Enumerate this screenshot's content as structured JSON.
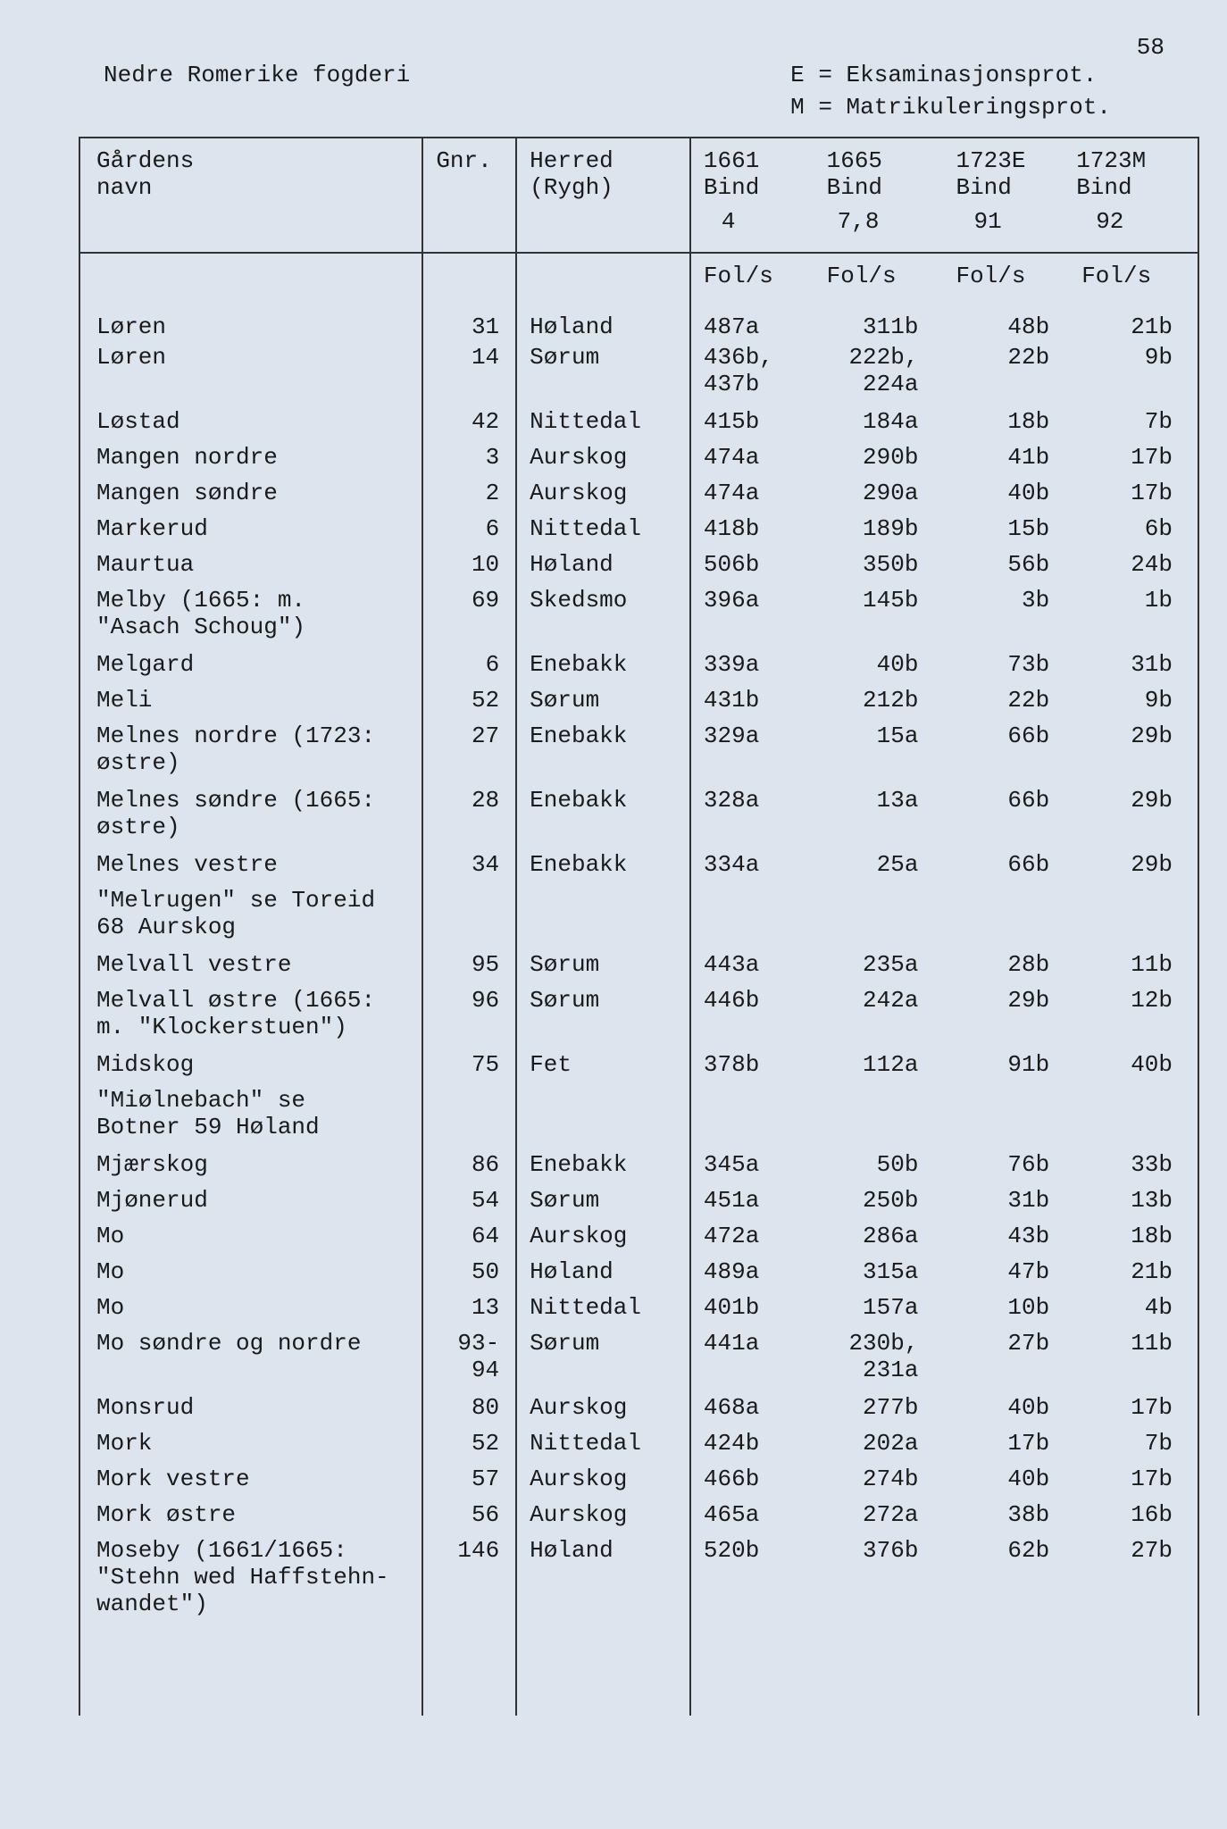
{
  "page_number": "58",
  "header": {
    "left": "Nedre Romerike fogderi",
    "right_line1": "E = Eksaminasjonsprot.",
    "right_line2": "M = Matrikuleringsprot."
  },
  "columns": {
    "name_label1": "Gårdens",
    "name_label2": "navn",
    "gnr_label": "Gnr.",
    "herred_label1": "Herred",
    "herred_label2": "(Rygh)",
    "y1661_l1": "1661",
    "y1661_l2": "Bind",
    "y1661_l3": "4",
    "y1665_l1": "1665",
    "y1665_l2": "Bind",
    "y1665_l3": "7,8",
    "y1723e_l1": "1723E",
    "y1723e_l2": "Bind",
    "y1723e_l3": "91",
    "y1723m_l1": "1723M",
    "y1723m_l2": "Bind",
    "y1723m_l3": "92",
    "fols": "Fol/s"
  },
  "rows": [
    {
      "name": "Løren",
      "gnr": "31",
      "herred": "Høland",
      "c1": "487a",
      "c2": "311b",
      "c3": "48b",
      "c4": "21b"
    },
    {
      "name": "Løren",
      "gnr": "14",
      "herred": "Sørum",
      "c1": "436b,\n437b",
      "c2": "222b,\n224a",
      "c3": "22b",
      "c4": "9b",
      "multi": true
    },
    {
      "name": "Løstad",
      "gnr": "42",
      "herred": "Nittedal",
      "c1": "415b",
      "c2": "184a",
      "c3": "18b",
      "c4": "7b"
    },
    {
      "name": "Mangen nordre",
      "gnr": "3",
      "herred": "Aurskog",
      "c1": "474a",
      "c2": "290b",
      "c3": "41b",
      "c4": "17b"
    },
    {
      "name": "Mangen søndre",
      "gnr": "2",
      "herred": "Aurskog",
      "c1": "474a",
      "c2": "290a",
      "c3": "40b",
      "c4": "17b"
    },
    {
      "name": "Markerud",
      "gnr": "6",
      "herred": "Nittedal",
      "c1": "418b",
      "c2": "189b",
      "c3": "15b",
      "c4": "6b"
    },
    {
      "name": "Maurtua",
      "gnr": "10",
      "herred": "Høland",
      "c1": "506b",
      "c2": "350b",
      "c3": "56b",
      "c4": "24b"
    },
    {
      "name": "Melby (1665: m.\n\"Asach Schoug\")",
      "gnr": "69",
      "herred": "Skedsmo",
      "c1": "396a",
      "c2": "145b",
      "c3": "3b",
      "c4": "1b",
      "multi": true
    },
    {
      "name": "Melgard",
      "gnr": "6",
      "herred": "Enebakk",
      "c1": "339a",
      "c2": "40b",
      "c3": "73b",
      "c4": "31b"
    },
    {
      "name": "Meli",
      "gnr": "52",
      "herred": "Sørum",
      "c1": "431b",
      "c2": "212b",
      "c3": "22b",
      "c4": "9b"
    },
    {
      "name": "Melnes nordre (1723:\nøstre)",
      "gnr": "27",
      "herred": "Enebakk",
      "c1": "329a",
      "c2": "15a",
      "c3": "66b",
      "c4": "29b",
      "multi": true
    },
    {
      "name": "Melnes søndre (1665:\nøstre)",
      "gnr": "28",
      "herred": "Enebakk",
      "c1": "328a",
      "c2": "13a",
      "c3": "66b",
      "c4": "29b",
      "multi": true
    },
    {
      "name": "Melnes vestre",
      "gnr": "34",
      "herred": "Enebakk",
      "c1": "334a",
      "c2": "25a",
      "c3": "66b",
      "c4": "29b"
    },
    {
      "name": "\"Melrugen\" se Toreid\n68 Aurskog",
      "gnr": "",
      "herred": "",
      "c1": "",
      "c2": "",
      "c3": "",
      "c4": "",
      "multi": true
    },
    {
      "name": "Melvall vestre",
      "gnr": "95",
      "herred": "Sørum",
      "c1": "443a",
      "c2": "235a",
      "c3": "28b",
      "c4": "11b"
    },
    {
      "name": "Melvall østre (1665:\nm. \"Klockerstuen\")",
      "gnr": "96",
      "herred": "Sørum",
      "c1": "446b",
      "c2": "242a",
      "c3": "29b",
      "c4": "12b",
      "multi": true
    },
    {
      "name": "Midskog",
      "gnr": "75",
      "herred": "Fet",
      "c1": "378b",
      "c2": "112a",
      "c3": "91b",
      "c4": "40b"
    },
    {
      "name": "\"Miølnebach\" se\nBotner 59 Høland",
      "gnr": "",
      "herred": "",
      "c1": "",
      "c2": "",
      "c3": "",
      "c4": "",
      "multi": true
    },
    {
      "name": "Mjærskog",
      "gnr": "86",
      "herred": "Enebakk",
      "c1": "345a",
      "c2": "50b",
      "c3": "76b",
      "c4": "33b"
    },
    {
      "name": "Mjønerud",
      "gnr": "54",
      "herred": "Sørum",
      "c1": "451a",
      "c2": "250b",
      "c3": "31b",
      "c4": "13b"
    },
    {
      "name": "Mo",
      "gnr": "64",
      "herred": "Aurskog",
      "c1": "472a",
      "c2": "286a",
      "c3": "43b",
      "c4": "18b"
    },
    {
      "name": "Mo",
      "gnr": "50",
      "herred": "Høland",
      "c1": "489a",
      "c2": "315a",
      "c3": "47b",
      "c4": "21b"
    },
    {
      "name": "Mo",
      "gnr": "13",
      "herred": "Nittedal",
      "c1": "401b",
      "c2": "157a",
      "c3": "10b",
      "c4": "4b"
    },
    {
      "name": "Mo søndre og nordre",
      "gnr": "93-\n94",
      "herred": "Sørum",
      "c1": "441a",
      "c2": "230b,\n231a",
      "c3": "27b",
      "c4": "11b",
      "multi": true
    },
    {
      "name": "Monsrud",
      "gnr": "80",
      "herred": "Aurskog",
      "c1": "468a",
      "c2": "277b",
      "c3": "40b",
      "c4": "17b"
    },
    {
      "name": "Mork",
      "gnr": "52",
      "herred": "Nittedal",
      "c1": "424b",
      "c2": "202a",
      "c3": "17b",
      "c4": "7b"
    },
    {
      "name": "Mork vestre",
      "gnr": "57",
      "herred": "Aurskog",
      "c1": "466b",
      "c2": "274b",
      "c3": "40b",
      "c4": "17b"
    },
    {
      "name": "Mork østre",
      "gnr": "56",
      "herred": "Aurskog",
      "c1": "465a",
      "c2": "272a",
      "c3": "38b",
      "c4": "16b"
    },
    {
      "name": "Moseby (1661/1665:\n\"Stehn wed Haffstehn-\nwandet\")",
      "gnr": "146",
      "herred": "Høland",
      "c1": "520b",
      "c2": "376b",
      "c3": "62b",
      "c4": "27b",
      "multi": true
    }
  ]
}
